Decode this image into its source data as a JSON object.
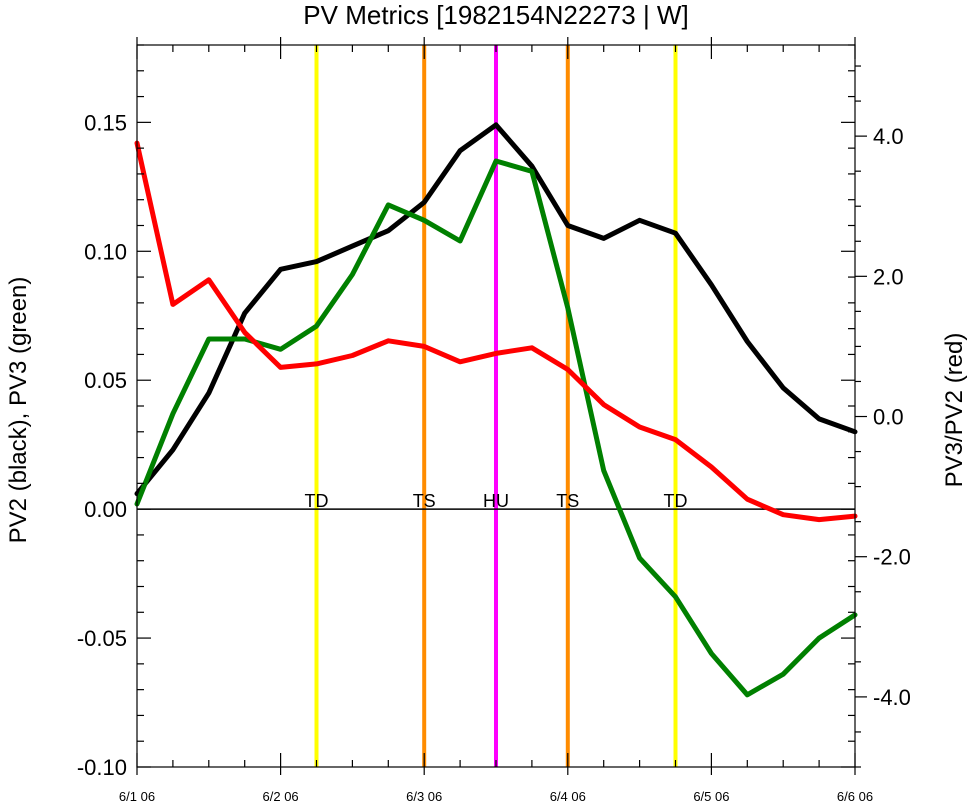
{
  "chart_data": {
    "type": "line",
    "title": "PV Metrics [1982154N22273 | W]",
    "ylabel_left": "PV2 (black), PV3 (green)",
    "ylabel_right": "PV3/PV2 (red)",
    "x_tick_labels": [
      "6/1 06",
      "6/2 06",
      "6/3 06",
      "6/4 06",
      "6/5 06",
      "6/6 06"
    ],
    "x_tick_steps": [
      0,
      4,
      8,
      12,
      16,
      20
    ],
    "x_range": [
      0,
      20
    ],
    "ylim_left": [
      -0.1,
      0.18
    ],
    "ylim_right": [
      -5.0,
      5.3
    ],
    "yticks_left": [
      "0.15",
      "0.10",
      "0.05",
      "0.00",
      "-0.05",
      "-0.10"
    ],
    "yticks_left_values": [
      0.15,
      0.1,
      0.05,
      0.0,
      -0.05,
      -0.1
    ],
    "yticks_right": [
      "4.0",
      "2.0",
      "0.0",
      "-2.0",
      "-4.0"
    ],
    "yticks_right_values": [
      4.0,
      2.0,
      0.0,
      -2.0,
      -4.0
    ],
    "zero_line": 0.0,
    "series": [
      {
        "name": "PV2",
        "axis": "left",
        "color": "#000000",
        "values": [
          0.006,
          0.023,
          0.045,
          0.076,
          0.093,
          0.096,
          0.102,
          0.108,
          0.119,
          0.139,
          0.149,
          0.133,
          0.11,
          0.105,
          0.112,
          0.107,
          0.087,
          0.065,
          0.047,
          0.035,
          0.03
        ]
      },
      {
        "name": "PV3",
        "axis": "left",
        "color": "#008000",
        "values": [
          0.002,
          0.037,
          0.066,
          0.066,
          0.062,
          0.071,
          0.091,
          0.118,
          0.112,
          0.104,
          0.135,
          0.131,
          0.078,
          0.015,
          -0.019,
          -0.034,
          -0.056,
          -0.072,
          -0.064,
          -0.05,
          -0.041
        ]
      },
      {
        "name": "PV3/PV2",
        "axis": "right",
        "color": "#ff0000",
        "values": [
          3.9,
          1.6,
          1.95,
          1.2,
          0.7,
          0.75,
          0.87,
          1.08,
          1.0,
          0.78,
          0.9,
          0.98,
          0.67,
          0.17,
          -0.15,
          -0.33,
          -0.72,
          -1.18,
          -1.4,
          -1.47,
          -1.42
        ]
      }
    ],
    "stage_markers": [
      {
        "label": "TD",
        "step": 5,
        "color": "#ffff00"
      },
      {
        "label": "TS",
        "step": 8,
        "color": "#ff8c00"
      },
      {
        "label": "HU",
        "step": 10,
        "color": "#ff00ff"
      },
      {
        "label": "TS",
        "step": 12,
        "color": "#ff8c00"
      },
      {
        "label": "TD",
        "step": 15,
        "color": "#ffff00"
      }
    ],
    "grid": false,
    "legend": "none"
  }
}
